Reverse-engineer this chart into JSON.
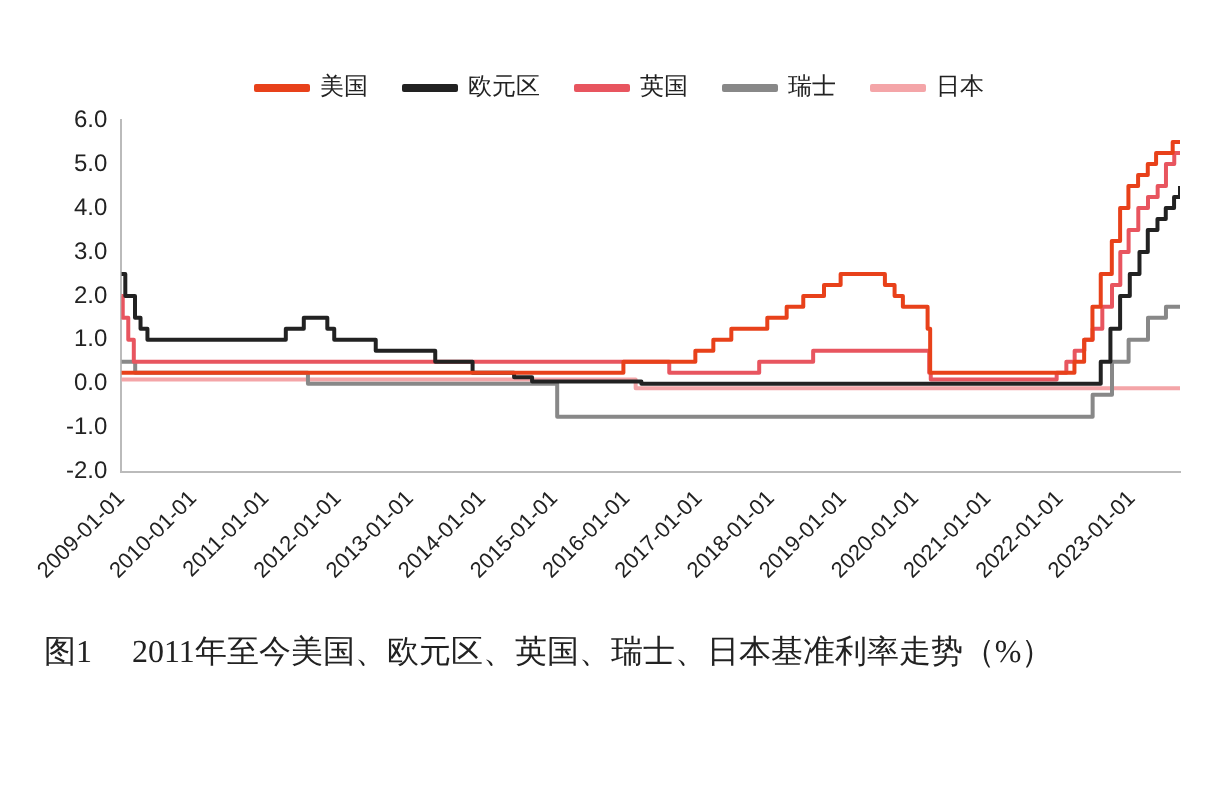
{
  "chart_data": {
    "type": "step",
    "title": "图1　 2011年至今美国、欧元区、英国、瑞士、日本基准利率走势（%）",
    "legend": "top",
    "grid": false,
    "marker": "none",
    "line_style": "solid",
    "xlim": [
      "2009-01-01",
      "2023-09-01"
    ],
    "xticks": [
      "2009-01-01",
      "2010-01-01",
      "2011-01-01",
      "2012-01-01",
      "2013-01-01",
      "2014-01-01",
      "2015-01-01",
      "2016-01-01",
      "2017-01-01",
      "2018-01-01",
      "2019-01-01",
      "2020-01-01",
      "2021-01-01",
      "2022-01-01",
      "2023-01-01"
    ],
    "ylim": [
      -2,
      6
    ],
    "yticks": [
      {
        "value": 6,
        "label": "6.0"
      },
      {
        "value": 5,
        "label": "5.0"
      },
      {
        "value": 4,
        "label": "4.0"
      },
      {
        "value": 3,
        "label": "3.0"
      },
      {
        "value": 2,
        "label": "2.0"
      },
      {
        "value": 1,
        "label": "1.0"
      },
      {
        "value": 0,
        "label": "0.0"
      },
      {
        "value": -1,
        "label": "-1.0"
      },
      {
        "value": -2,
        "label": "-2.0"
      }
    ],
    "series": [
      {
        "name": "美国",
        "color": "#e8411a",
        "x": [
          "2009-01-01",
          "2015-12-16",
          "2016-12-14",
          "2017-03-15",
          "2017-06-14",
          "2017-12-13",
          "2018-03-21",
          "2018-06-13",
          "2018-09-26",
          "2018-12-19",
          "2019-07-31",
          "2019-09-18",
          "2019-10-30",
          "2020-03-03",
          "2020-03-16",
          "2022-03-16",
          "2022-05-04",
          "2022-06-15",
          "2022-07-27",
          "2022-09-21",
          "2022-11-02",
          "2022-12-14",
          "2023-02-01",
          "2023-03-22",
          "2023-05-03",
          "2023-07-26",
          "2023-09-01"
        ],
        "values": [
          0.25,
          0.5,
          0.75,
          1.0,
          1.25,
          1.5,
          1.75,
          2.0,
          2.25,
          2.5,
          2.25,
          2.0,
          1.75,
          1.25,
          0.25,
          0.5,
          1.0,
          1.75,
          2.5,
          3.25,
          4.0,
          4.5,
          4.75,
          5.0,
          5.25,
          5.5,
          5.5
        ]
      },
      {
        "name": "欧元区",
        "color": "#222222",
        "x": [
          "2009-01-01",
          "2009-01-21",
          "2009-03-11",
          "2009-04-08",
          "2009-05-13",
          "2011-04-13",
          "2011-07-13",
          "2011-11-09",
          "2011-12-14",
          "2012-07-11",
          "2013-05-08",
          "2013-11-13",
          "2014-06-11",
          "2014-09-10",
          "2016-03-16",
          "2022-07-27",
          "2022-09-14",
          "2022-11-02",
          "2022-12-21",
          "2023-02-08",
          "2023-03-22",
          "2023-05-10",
          "2023-06-21",
          "2023-08-02",
          "2023-09-01"
        ],
        "values": [
          2.5,
          2.0,
          1.5,
          1.25,
          1.0,
          1.25,
          1.5,
          1.25,
          1.0,
          0.75,
          0.5,
          0.25,
          0.15,
          0.05,
          0.0,
          0.5,
          1.25,
          2.0,
          2.5,
          3.0,
          3.5,
          3.75,
          4.0,
          4.25,
          4.5
        ]
      },
      {
        "name": "英国",
        "color": "#e8555f",
        "x": [
          "2009-01-01",
          "2009-01-08",
          "2009-02-05",
          "2009-03-05",
          "2016-08-04",
          "2017-11-02",
          "2018-08-02",
          "2020-03-11",
          "2020-03-19",
          "2021-12-16",
          "2022-02-03",
          "2022-03-17",
          "2022-05-05",
          "2022-06-16",
          "2022-08-04",
          "2022-09-22",
          "2022-11-03",
          "2022-12-15",
          "2023-02-02",
          "2023-03-23",
          "2023-05-11",
          "2023-06-22",
          "2023-08-03",
          "2023-09-01"
        ],
        "values": [
          2.0,
          1.5,
          1.0,
          0.5,
          0.25,
          0.5,
          0.75,
          0.25,
          0.1,
          0.25,
          0.5,
          0.75,
          1.0,
          1.25,
          1.75,
          2.25,
          3.0,
          3.5,
          4.0,
          4.25,
          4.5,
          5.0,
          5.25,
          5.25
        ]
      },
      {
        "name": "瑞士",
        "color": "#888888",
        "x": [
          "2009-01-01",
          "2009-03-12",
          "2011-08-03",
          "2015-01-15",
          "2022-06-16",
          "2022-09-22",
          "2022-12-15",
          "2023-03-23",
          "2023-06-22",
          "2023-09-01"
        ],
        "values": [
          0.5,
          0.25,
          0.0,
          -0.75,
          -0.25,
          0.5,
          1.0,
          1.5,
          1.75,
          1.75
        ]
      },
      {
        "name": "日本",
        "color": "#f4a5a8",
        "x": [
          "2009-01-01",
          "2016-02-16",
          "2023-09-01"
        ],
        "values": [
          0.1,
          -0.1,
          -0.1
        ]
      }
    ]
  }
}
